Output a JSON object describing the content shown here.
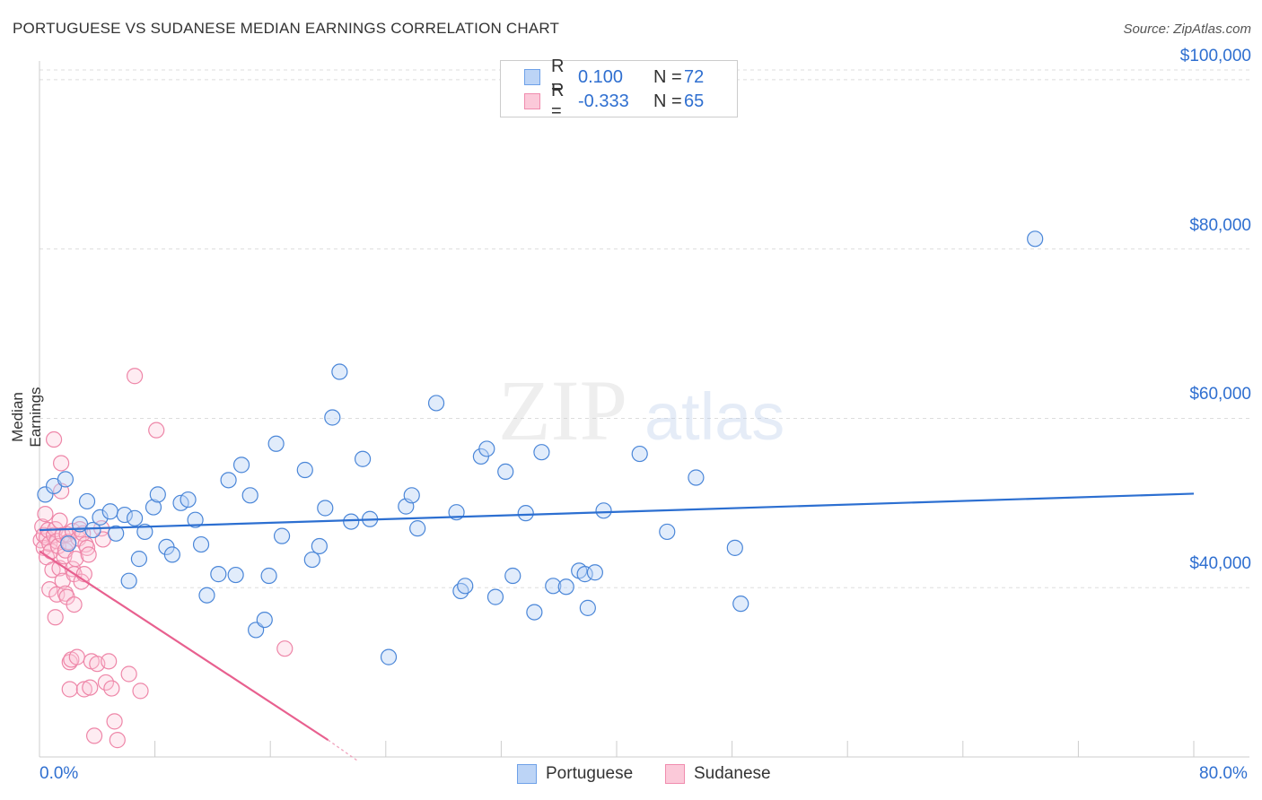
{
  "title": "PORTUGUESE VS SUDANESE MEDIAN EARNINGS CORRELATION CHART",
  "source": "Source: ZipAtlas.com",
  "watermark": {
    "zip": "ZIP",
    "atlas": "atlas"
  },
  "legend": {
    "rows": [
      {
        "r_label": "R =",
        "r_value": "0.100",
        "n_label": "N =",
        "n_value": "72",
        "color": "#6ea1e8",
        "fill": "#bcd4f6"
      },
      {
        "r_label": "R =",
        "r_value": "-0.333",
        "n_label": "N =",
        "n_value": "65",
        "color": "#f08cae",
        "fill": "#fbc9d9"
      }
    ]
  },
  "bottom_legend": {
    "portuguese": "Portuguese",
    "sudanese": "Sudanese"
  },
  "colors": {
    "blue": "#4a86d8",
    "blue_line": "#2c6fd1",
    "pink": "#ee86a8",
    "pink_line": "#e8608f",
    "axis_text": "#2f6fd0"
  },
  "chart_data": {
    "type": "scatter",
    "title": "PORTUGUESE VS SUDANESE MEDIAN EARNINGS CORRELATION CHART",
    "xlabel": "",
    "ylabel": "Median Earnings",
    "xlim": [
      0,
      80
    ],
    "ylim": [
      20000,
      102000
    ],
    "x_tick_labels": [
      "0.0%",
      "80.0%"
    ],
    "y_ticks": [
      40000,
      60000,
      80000,
      100000
    ],
    "y_tick_labels": [
      "$40,000",
      "$60,000",
      "$80,000",
      "$100,000"
    ],
    "grid": true,
    "legend_position": "top-center",
    "series": [
      {
        "name": "Portuguese",
        "color": "#4a86d8",
        "points": [
          [
            0.4,
            51000
          ],
          [
            1.0,
            52000
          ],
          [
            1.8,
            52800
          ],
          [
            2.8,
            47500
          ],
          [
            3.3,
            50200
          ],
          [
            3.7,
            46800
          ],
          [
            4.2,
            48300
          ],
          [
            4.9,
            49000
          ],
          [
            5.3,
            46400
          ],
          [
            5.9,
            48600
          ],
          [
            6.6,
            48200
          ],
          [
            6.9,
            43400
          ],
          [
            7.3,
            46600
          ],
          [
            7.9,
            49500
          ],
          [
            8.2,
            51000
          ],
          [
            8.8,
            44800
          ],
          [
            9.2,
            43900
          ],
          [
            9.8,
            50000
          ],
          [
            10.3,
            50400
          ],
          [
            10.8,
            48000
          ],
          [
            11.2,
            45100
          ],
          [
            11.6,
            39100
          ],
          [
            12.4,
            41600
          ],
          [
            13.1,
            52700
          ],
          [
            13.6,
            41500
          ],
          [
            14.0,
            54500
          ],
          [
            14.6,
            50900
          ],
          [
            15.0,
            35000
          ],
          [
            15.6,
            36200
          ],
          [
            15.9,
            41400
          ],
          [
            16.4,
            57000
          ],
          [
            16.8,
            46100
          ],
          [
            18.4,
            53900
          ],
          [
            18.9,
            43300
          ],
          [
            19.4,
            44900
          ],
          [
            19.8,
            49400
          ],
          [
            20.3,
            60100
          ],
          [
            20.8,
            65500
          ],
          [
            21.6,
            47800
          ],
          [
            22.4,
            55200
          ],
          [
            22.9,
            48100
          ],
          [
            24.2,
            31800
          ],
          [
            25.4,
            49600
          ],
          [
            25.8,
            50900
          ],
          [
            26.2,
            47000
          ],
          [
            27.5,
            61800
          ],
          [
            28.9,
            48900
          ],
          [
            29.2,
            39600
          ],
          [
            29.5,
            40200
          ],
          [
            30.6,
            55500
          ],
          [
            31.0,
            56400
          ],
          [
            31.6,
            38900
          ],
          [
            32.3,
            53700
          ],
          [
            32.8,
            41400
          ],
          [
            33.7,
            48800
          ],
          [
            34.3,
            37100
          ],
          [
            34.8,
            56000
          ],
          [
            35.6,
            40200
          ],
          [
            36.5,
            40100
          ],
          [
            37.4,
            42000
          ],
          [
            37.8,
            41600
          ],
          [
            38.0,
            37600
          ],
          [
            38.5,
            41800
          ],
          [
            39.1,
            49100
          ],
          [
            41.6,
            55800
          ],
          [
            43.5,
            46600
          ],
          [
            45.5,
            53000
          ],
          [
            48.2,
            44700
          ],
          [
            48.6,
            38100
          ],
          [
            69.0,
            81200
          ],
          [
            2.0,
            45200
          ],
          [
            6.2,
            40800
          ]
        ]
      },
      {
        "name": "Sudanese",
        "color": "#ee86a8",
        "points": [
          [
            0.1,
            45600
          ],
          [
            0.2,
            47200
          ],
          [
            0.3,
            46200
          ],
          [
            0.3,
            44700
          ],
          [
            0.4,
            48700
          ],
          [
            0.5,
            45900
          ],
          [
            0.5,
            43600
          ],
          [
            0.6,
            46800
          ],
          [
            0.7,
            45200
          ],
          [
            0.7,
            39800
          ],
          [
            0.8,
            44300
          ],
          [
            0.9,
            42100
          ],
          [
            1.0,
            57500
          ],
          [
            1.0,
            46200
          ],
          [
            1.1,
            46900
          ],
          [
            1.2,
            45500
          ],
          [
            1.2,
            39200
          ],
          [
            1.3,
            44900
          ],
          [
            1.4,
            47900
          ],
          [
            1.4,
            42300
          ],
          [
            1.5,
            54700
          ],
          [
            1.5,
            51400
          ],
          [
            1.6,
            46200
          ],
          [
            1.6,
            40800
          ],
          [
            1.7,
            43700
          ],
          [
            1.8,
            44400
          ],
          [
            1.8,
            39300
          ],
          [
            1.9,
            46300
          ],
          [
            1.9,
            38900
          ],
          [
            2.0,
            45400
          ],
          [
            2.1,
            31200
          ],
          [
            2.1,
            28000
          ],
          [
            2.2,
            31500
          ],
          [
            2.3,
            42200
          ],
          [
            2.3,
            46700
          ],
          [
            2.4,
            41600
          ],
          [
            2.4,
            38000
          ],
          [
            2.5,
            43400
          ],
          [
            2.6,
            31800
          ],
          [
            2.7,
            45800
          ],
          [
            2.8,
            46900
          ],
          [
            2.9,
            40700
          ],
          [
            3.0,
            46400
          ],
          [
            3.1,
            28000
          ],
          [
            3.1,
            41600
          ],
          [
            3.2,
            45100
          ],
          [
            3.3,
            44700
          ],
          [
            3.4,
            43900
          ],
          [
            3.5,
            28200
          ],
          [
            3.6,
            31300
          ],
          [
            3.8,
            22500
          ],
          [
            4.0,
            31000
          ],
          [
            4.3,
            47000
          ],
          [
            4.4,
            45700
          ],
          [
            4.6,
            28800
          ],
          [
            4.8,
            31300
          ],
          [
            5.0,
            28100
          ],
          [
            5.2,
            24200
          ],
          [
            5.4,
            22000
          ],
          [
            6.2,
            29800
          ],
          [
            6.6,
            65000
          ],
          [
            7.0,
            27800
          ],
          [
            8.1,
            58600
          ],
          [
            17.0,
            32800
          ],
          [
            1.1,
            36500
          ]
        ]
      }
    ],
    "trend_lines": [
      {
        "series": "Portuguese",
        "x0": 0,
        "y0": 46800,
        "x1": 80,
        "y1": 51100
      },
      {
        "series": "Sudanese",
        "x0": 0,
        "y0": 44300,
        "x1": 20,
        "y1": 22000,
        "dash_to_x": 22,
        "dash_to_y": 19600
      }
    ]
  }
}
